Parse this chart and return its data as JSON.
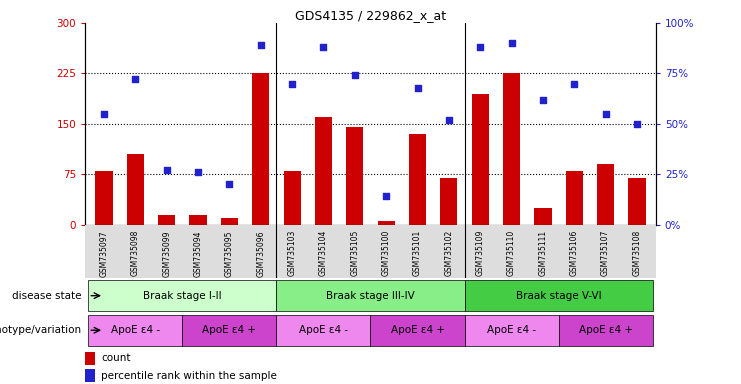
{
  "title": "GDS4135 / 229862_x_at",
  "samples": [
    "GSM735097",
    "GSM735098",
    "GSM735099",
    "GSM735094",
    "GSM735095",
    "GSM735096",
    "GSM735103",
    "GSM735104",
    "GSM735105",
    "GSM735100",
    "GSM735101",
    "GSM735102",
    "GSM735109",
    "GSM735110",
    "GSM735111",
    "GSM735106",
    "GSM735107",
    "GSM735108"
  ],
  "counts": [
    80,
    105,
    15,
    15,
    10,
    225,
    80,
    160,
    145,
    5,
    135,
    70,
    195,
    225,
    25,
    80,
    90,
    70
  ],
  "percentiles": [
    55,
    72,
    27,
    26,
    20,
    89,
    70,
    88,
    74,
    14,
    68,
    52,
    88,
    90,
    62,
    70,
    55,
    50
  ],
  "ylim_left": [
    0,
    300
  ],
  "ylim_right": [
    0,
    100
  ],
  "yticks_left": [
    0,
    75,
    150,
    225,
    300
  ],
  "yticks_right": [
    0,
    25,
    50,
    75,
    100
  ],
  "bar_color": "#cc0000",
  "dot_color": "#2222cc",
  "disease_state_groups": [
    {
      "label": "Braak stage I-II",
      "start": 0,
      "end": 6,
      "color": "#ccffcc"
    },
    {
      "label": "Braak stage III-IV",
      "start": 6,
      "end": 12,
      "color": "#88ee88"
    },
    {
      "label": "Braak stage V-VI",
      "start": 12,
      "end": 18,
      "color": "#44cc44"
    }
  ],
  "genotype_groups": [
    {
      "label": "ApoE ε4 -",
      "start": 0,
      "end": 3,
      "color": "#ee88ee"
    },
    {
      "label": "ApoE ε4 +",
      "start": 3,
      "end": 6,
      "color": "#cc44cc"
    },
    {
      "label": "ApoE ε4 -",
      "start": 6,
      "end": 9,
      "color": "#ee88ee"
    },
    {
      "label": "ApoE ε4 +",
      "start": 9,
      "end": 12,
      "color": "#cc44cc"
    },
    {
      "label": "ApoE ε4 -",
      "start": 12,
      "end": 15,
      "color": "#ee88ee"
    },
    {
      "label": "ApoE ε4 +",
      "start": 15,
      "end": 18,
      "color": "#cc44cc"
    }
  ],
  "disease_label": "disease state",
  "genotype_label": "genotype/variation",
  "legend_count": "count",
  "legend_pct": "percentile rank within the sample",
  "bar_width": 0.55,
  "xtick_bg": "#dddddd",
  "group_sep_color": "#000000"
}
